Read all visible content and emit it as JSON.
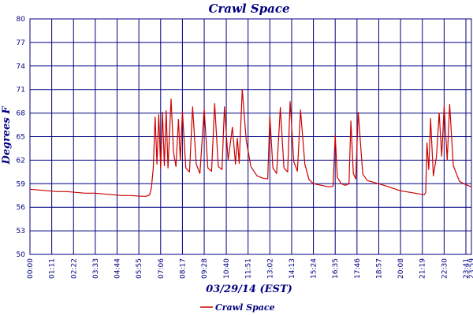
{
  "chart_data": {
    "type": "line",
    "title": "Crawl Space",
    "xlabel": "03/29/14 (EST)",
    "ylabel": "Degrees F",
    "ylim": [
      50,
      80
    ],
    "xlim": [
      "00:00",
      "23:59"
    ],
    "y_ticks": [
      "50",
      "53",
      "56",
      "59",
      "62",
      "65",
      "68",
      "71",
      "74",
      "77",
      "80"
    ],
    "x_ticks": [
      "00:00",
      "01:11",
      "02:22",
      "03:33",
      "04:44",
      "05:55",
      "07:06",
      "08:17",
      "09:28",
      "10:40",
      "11:51",
      "13:02",
      "14:13",
      "15:24",
      "16:35",
      "17:46",
      "18:57",
      "20:08",
      "21:19",
      "22:30",
      "23:41",
      "23:59"
    ],
    "grid": true,
    "legend_position": "bottom",
    "series": [
      {
        "name": "Crawl Space",
        "color": "#cc0000",
        "points": [
          [
            "00:00",
            58.3
          ],
          [
            "00:30",
            58.2
          ],
          [
            "01:00",
            58.1
          ],
          [
            "01:30",
            58.0
          ],
          [
            "02:00",
            58.0
          ],
          [
            "02:30",
            57.9
          ],
          [
            "03:00",
            57.8
          ],
          [
            "03:30",
            57.8
          ],
          [
            "04:00",
            57.7
          ],
          [
            "04:30",
            57.6
          ],
          [
            "05:00",
            57.5
          ],
          [
            "05:30",
            57.5
          ],
          [
            "06:00",
            57.4
          ],
          [
            "06:20",
            57.4
          ],
          [
            "06:30",
            57.6
          ],
          [
            "06:36",
            58.5
          ],
          [
            "06:42",
            61.0
          ],
          [
            "06:48",
            67.5
          ],
          [
            "06:54",
            61.5
          ],
          [
            "07:00",
            67.8
          ],
          [
            "07:06",
            61.0
          ],
          [
            "07:12",
            68.1
          ],
          [
            "07:18",
            61.3
          ],
          [
            "07:24",
            68.3
          ],
          [
            "07:30",
            61.0
          ],
          [
            "07:40",
            69.8
          ],
          [
            "07:48",
            63.0
          ],
          [
            "07:56",
            61.2
          ],
          [
            "08:04",
            67.2
          ],
          [
            "08:10",
            62.0
          ],
          [
            "08:17",
            68.2
          ],
          [
            "08:28",
            61.0
          ],
          [
            "08:40",
            60.5
          ],
          [
            "08:50",
            68.8
          ],
          [
            "09:02",
            61.5
          ],
          [
            "09:14",
            60.3
          ],
          [
            "09:28",
            68.5
          ],
          [
            "09:40",
            61.0
          ],
          [
            "09:52",
            60.6
          ],
          [
            "10:02",
            69.2
          ],
          [
            "10:14",
            61.2
          ],
          [
            "10:26",
            60.8
          ],
          [
            "10:34",
            68.8
          ],
          [
            "10:46",
            62.0
          ],
          [
            "11:00",
            66.2
          ],
          [
            "11:10",
            61.5
          ],
          [
            "11:16",
            64.8
          ],
          [
            "11:22",
            61.6
          ],
          [
            "11:32",
            71.0
          ],
          [
            "11:45",
            64.5
          ],
          [
            "12:00",
            61.2
          ],
          [
            "12:20",
            60.0
          ],
          [
            "12:40",
            59.7
          ],
          [
            "12:55",
            59.6
          ],
          [
            "13:02",
            67.6
          ],
          [
            "13:12",
            61.0
          ],
          [
            "13:24",
            60.3
          ],
          [
            "13:36",
            68.7
          ],
          [
            "13:48",
            61.0
          ],
          [
            "14:00",
            60.5
          ],
          [
            "14:08",
            69.5
          ],
          [
            "14:20",
            61.8
          ],
          [
            "14:32",
            60.6
          ],
          [
            "14:42",
            68.4
          ],
          [
            "14:56",
            61.5
          ],
          [
            "15:10",
            59.5
          ],
          [
            "15:24",
            59.0
          ],
          [
            "15:50",
            58.8
          ],
          [
            "16:15",
            58.6
          ],
          [
            "16:28",
            58.7
          ],
          [
            "16:35",
            65.2
          ],
          [
            "16:42",
            59.8
          ],
          [
            "16:55",
            59.0
          ],
          [
            "17:08",
            58.8
          ],
          [
            "17:20",
            59.0
          ],
          [
            "17:26",
            67.0
          ],
          [
            "17:34",
            60.3
          ],
          [
            "17:42",
            59.6
          ],
          [
            "17:50",
            68.1
          ],
          [
            "18:05",
            60.2
          ],
          [
            "18:20",
            59.4
          ],
          [
            "18:57",
            59.0
          ],
          [
            "19:30",
            58.6
          ],
          [
            "20:08",
            58.1
          ],
          [
            "20:40",
            57.9
          ],
          [
            "21:10",
            57.7
          ],
          [
            "21:25",
            57.6
          ],
          [
            "21:30",
            57.9
          ],
          [
            "21:34",
            64.2
          ],
          [
            "21:40",
            60.8
          ],
          [
            "21:46",
            67.3
          ],
          [
            "21:55",
            60.0
          ],
          [
            "22:05",
            62.4
          ],
          [
            "22:14",
            68.0
          ],
          [
            "22:22",
            62.5
          ],
          [
            "22:30",
            68.9
          ],
          [
            "22:40",
            62.0
          ],
          [
            "22:48",
            69.1
          ],
          [
            "23:00",
            61.3
          ],
          [
            "23:20",
            59.3
          ],
          [
            "23:40",
            58.9
          ],
          [
            "23:59",
            58.6
          ]
        ]
      }
    ]
  }
}
